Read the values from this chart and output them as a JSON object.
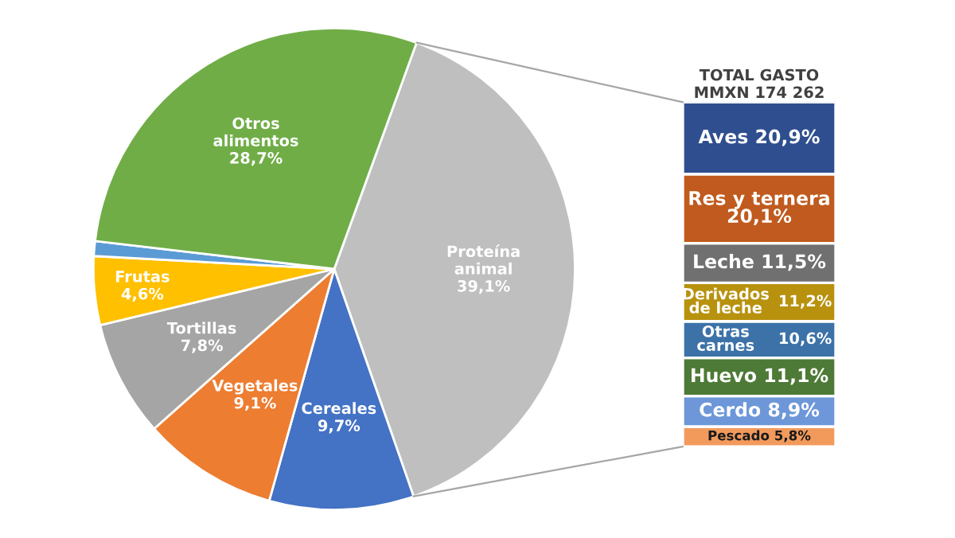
{
  "chart_data": [
    {
      "type": "pie",
      "categories": [
        "Proteína\nanimal",
        "Cereales",
        "Vegetales",
        "Tortillas",
        "Frutas",
        null,
        "Otros\nalimentos"
      ],
      "values": [
        39.1,
        9.7,
        9.1,
        7.8,
        4.6,
        1.0,
        28.7
      ],
      "value_labels": [
        "39,1%",
        "9,7%",
        "9,1%",
        "7,8%",
        "4,6%",
        null,
        "28,7%"
      ],
      "colors": [
        "#bfbfbf",
        "#4472c4",
        "#ed7d31",
        "#a5a5a5",
        "#ffc000",
        "#5b9bd5",
        "#70ad47"
      ]
    },
    {
      "type": "bar",
      "title": "TOTAL GASTO\nMMXN 174 262",
      "stacked": true,
      "categories": [
        null
      ],
      "legend": false,
      "series": [
        {
          "name": "Pescado",
          "color": "#f29a5c",
          "values": [
            5.8
          ],
          "value_labels": [
            "5,8%"
          ]
        },
        {
          "name": "Cerdo",
          "color": "#6d97d8",
          "values": [
            8.9
          ],
          "value_labels": [
            "8,9%"
          ]
        },
        {
          "name": "Huevo",
          "color": "#4d7a36",
          "values": [
            11.1
          ],
          "value_labels": [
            "11,1%"
          ]
        },
        {
          "name": "Otras\ncarnes",
          "color": "#3c72a8",
          "values": [
            10.6
          ],
          "value_labels": [
            "10,6%"
          ]
        },
        {
          "name": "Derivados\nde leche",
          "color": "#b8920e",
          "values": [
            11.2
          ],
          "value_labels": [
            "11,2%"
          ]
        },
        {
          "name": "Leche",
          "color": "#707070",
          "values": [
            11.5
          ],
          "value_labels": [
            "11,5%"
          ]
        },
        {
          "name": "Res y ternera",
          "color": "#c05a1e",
          "values": [
            20.1
          ],
          "value_labels": [
            "20,1%"
          ]
        },
        {
          "name": "Aves",
          "color": "#2f4e8f",
          "values": [
            20.9
          ],
          "value_labels": [
            "20,9%"
          ]
        }
      ]
    }
  ]
}
